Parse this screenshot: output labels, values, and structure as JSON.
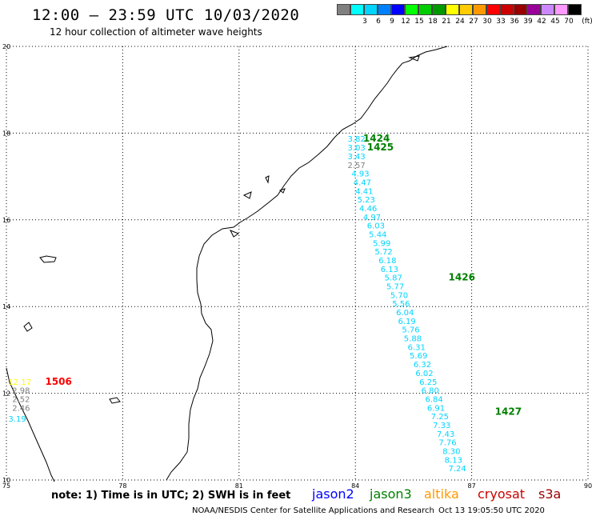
{
  "header": {
    "title": "12:00 – 23:59 UTC 10/03/2020",
    "subtitle": "12 hour collection of altimeter wave heights"
  },
  "legend": {
    "unit": "(ft)",
    "entries": [
      {
        "label": "",
        "color": "#808080"
      },
      {
        "label": "3",
        "color": "#00ffff"
      },
      {
        "label": "6",
        "color": "#00d4ff"
      },
      {
        "label": "9",
        "color": "#0080ff"
      },
      {
        "label": "12",
        "color": "#0000ff"
      },
      {
        "label": "15",
        "color": "#00ff00"
      },
      {
        "label": "18",
        "color": "#00cc00"
      },
      {
        "label": "21",
        "color": "#009900"
      },
      {
        "label": "24",
        "color": "#ffff00"
      },
      {
        "label": "27",
        "color": "#ffcc00"
      },
      {
        "label": "30",
        "color": "#ff9900"
      },
      {
        "label": "33",
        "color": "#ff0000"
      },
      {
        "label": "36",
        "color": "#cc0000"
      },
      {
        "label": "39",
        "color": "#990000"
      },
      {
        "label": "42",
        "color": "#990099"
      },
      {
        "label": "45",
        "color": "#cc88ff"
      },
      {
        "label": "70",
        "color": "#ff99ff"
      },
      {
        "label": "",
        "color": "#000000"
      }
    ]
  },
  "map": {
    "lon_range": [
      75,
      90
    ],
    "lat_range": [
      10,
      20
    ],
    "lon_ticks": [
      "75",
      "78",
      "81",
      "84",
      "87",
      "90"
    ],
    "lat_ticks": [
      "20",
      "18",
      "16",
      "14",
      "12",
      "10"
    ],
    "passes": [
      {
        "label": "1424",
        "color": "#008000",
        "lon": 84.2,
        "lat": 17.8
      },
      {
        "label": "1425",
        "color": "#008000",
        "lon": 84.3,
        "lat": 17.6
      },
      {
        "label": "1426",
        "color": "#008000",
        "lon": 86.4,
        "lat": 14.6
      },
      {
        "label": "1427",
        "color": "#008000",
        "lon": 87.6,
        "lat": 11.5
      },
      {
        "label": "1506",
        "color": "#ff0000",
        "lon": 76.0,
        "lat": 12.2
      }
    ],
    "track_east": [
      {
        "v": "3.82",
        "lon": 83.8,
        "lat": 17.8,
        "c": "#00d4ff"
      },
      {
        "v": "3.03",
        "lon": 83.8,
        "lat": 17.6,
        "c": "#00d4ff"
      },
      {
        "v": "3.43",
        "lon": 83.8,
        "lat": 17.4,
        "c": "#00d4ff"
      },
      {
        "v": "2.57",
        "lon": 83.8,
        "lat": 17.2,
        "c": "#808080"
      },
      {
        "v": "4.93",
        "lon": 83.9,
        "lat": 17.0,
        "c": "#00d4ff"
      },
      {
        "v": "4.47",
        "lon": 83.95,
        "lat": 16.8,
        "c": "#00d4ff"
      },
      {
        "v": "4.41",
        "lon": 84.0,
        "lat": 16.6,
        "c": "#00d4ff"
      },
      {
        "v": "5.23",
        "lon": 84.05,
        "lat": 16.4,
        "c": "#00d4ff"
      },
      {
        "v": "4.46",
        "lon": 84.1,
        "lat": 16.2,
        "c": "#00d4ff"
      },
      {
        "v": "4.97",
        "lon": 84.2,
        "lat": 16.0,
        "c": "#00d4ff"
      },
      {
        "v": "6.03",
        "lon": 84.3,
        "lat": 15.8,
        "c": "#00d4ff"
      },
      {
        "v": "5.44",
        "lon": 84.35,
        "lat": 15.6,
        "c": "#00d4ff"
      },
      {
        "v": "5.99",
        "lon": 84.45,
        "lat": 15.4,
        "c": "#00d4ff"
      },
      {
        "v": "5.72",
        "lon": 84.5,
        "lat": 15.2,
        "c": "#00d4ff"
      },
      {
        "v": "6.18",
        "lon": 84.6,
        "lat": 15.0,
        "c": "#00d4ff"
      },
      {
        "v": "6.13",
        "lon": 84.65,
        "lat": 14.8,
        "c": "#00d4ff"
      },
      {
        "v": "5.87",
        "lon": 84.75,
        "lat": 14.6,
        "c": "#00d4ff"
      },
      {
        "v": "5.77",
        "lon": 84.8,
        "lat": 14.4,
        "c": "#00d4ff"
      },
      {
        "v": "5.70",
        "lon": 84.9,
        "lat": 14.2,
        "c": "#00d4ff"
      },
      {
        "v": "5.56",
        "lon": 84.95,
        "lat": 14.0,
        "c": "#00d4ff"
      },
      {
        "v": "6.04",
        "lon": 85.05,
        "lat": 13.8,
        "c": "#00d4ff"
      },
      {
        "v": "6.19",
        "lon": 85.1,
        "lat": 13.6,
        "c": "#00d4ff"
      },
      {
        "v": "5.76",
        "lon": 85.2,
        "lat": 13.4,
        "c": "#00d4ff"
      },
      {
        "v": "5.88",
        "lon": 85.25,
        "lat": 13.2,
        "c": "#00d4ff"
      },
      {
        "v": "6.31",
        "lon": 85.35,
        "lat": 13.0,
        "c": "#00d4ff"
      },
      {
        "v": "5.69",
        "lon": 85.4,
        "lat": 12.8,
        "c": "#00d4ff"
      },
      {
        "v": "6.32",
        "lon": 85.5,
        "lat": 12.6,
        "c": "#00d4ff"
      },
      {
        "v": "6.02",
        "lon": 85.55,
        "lat": 12.4,
        "c": "#00d4ff"
      },
      {
        "v": "6.25",
        "lon": 85.65,
        "lat": 12.2,
        "c": "#00d4ff"
      },
      {
        "v": "6.80",
        "lon": 85.7,
        "lat": 12.0,
        "c": "#00d4ff"
      },
      {
        "v": "6.84",
        "lon": 85.8,
        "lat": 11.8,
        "c": "#00d4ff"
      },
      {
        "v": "6.91",
        "lon": 85.85,
        "lat": 11.6,
        "c": "#00d4ff"
      },
      {
        "v": "7.25",
        "lon": 85.95,
        "lat": 11.4,
        "c": "#00d4ff"
      },
      {
        "v": "7.33",
        "lon": 86.0,
        "lat": 11.2,
        "c": "#00d4ff"
      },
      {
        "v": "7.43",
        "lon": 86.1,
        "lat": 11.0,
        "c": "#00d4ff"
      },
      {
        "v": "7.76",
        "lon": 86.15,
        "lat": 10.8,
        "c": "#00d4ff"
      },
      {
        "v": "8.30",
        "lon": 86.25,
        "lat": 10.6,
        "c": "#00d4ff"
      },
      {
        "v": "8.13",
        "lon": 86.3,
        "lat": 10.4,
        "c": "#00d4ff"
      },
      {
        "v": "7.24",
        "lon": 86.4,
        "lat": 10.2,
        "c": "#00d4ff"
      }
    ],
    "track_west": [
      {
        "v": "12.17",
        "lon": 75.05,
        "lat": 12.2,
        "c": "#ffff00"
      },
      {
        "v": "2.98",
        "lon": 75.15,
        "lat": 12.0,
        "c": "#808080"
      },
      {
        "v": "2.52",
        "lon": 75.15,
        "lat": 11.8,
        "c": "#808080"
      },
      {
        "v": "2.46",
        "lon": 75.15,
        "lat": 11.6,
        "c": "#808080"
      },
      {
        "v": "3.19",
        "lon": 75.05,
        "lat": 11.35,
        "c": "#00d4ff"
      }
    ]
  },
  "footer": {
    "note": "note: 1) Time is in UTC; 2) SWH is in feet",
    "satellites": [
      {
        "name": "jason2",
        "color": "#0000ff"
      },
      {
        "name": "jason3",
        "color": "#008000"
      },
      {
        "name": "altika",
        "color": "#ff9900"
      },
      {
        "name": "cryosat",
        "color": "#cc0000"
      },
      {
        "name": "s3a",
        "color": "#990000"
      }
    ],
    "credit": "NOAA/NESDIS Center for Satellite Applications and Research",
    "timestamp": "Oct 13 19:05:50 UTC 2020"
  }
}
